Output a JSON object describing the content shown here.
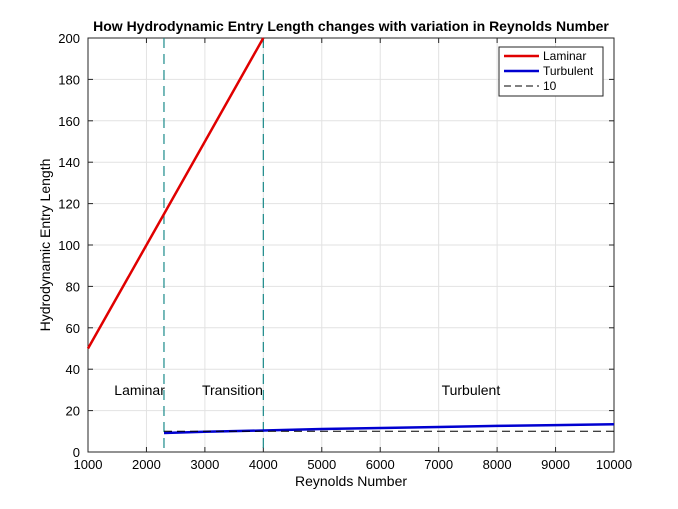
{
  "chart_data": {
    "type": "line",
    "title": "How Hydrodynamic Entry Length changes with variation in Reynolds Number",
    "xlabel": "Reynolds Number",
    "ylabel": "Hydrodynamic Entry Length",
    "xlim": [
      1000,
      10000
    ],
    "ylim": [
      0,
      200
    ],
    "grid": true,
    "legend_position": "top-right",
    "x_ticks": [
      1000,
      2000,
      3000,
      4000,
      5000,
      6000,
      7000,
      8000,
      9000,
      10000
    ],
    "y_ticks": [
      0,
      20,
      40,
      60,
      80,
      100,
      120,
      140,
      160,
      180,
      200
    ],
    "series": [
      {
        "name": "Laminar",
        "color": "#e00000",
        "style": "solid",
        "x": [
          1000,
          2300,
          4000
        ],
        "y": [
          50,
          115,
          200
        ]
      },
      {
        "name": "Turbulent",
        "color": "#0000d0",
        "style": "solid",
        "x": [
          2300,
          3000,
          4000,
          5000,
          6000,
          7000,
          8000,
          9000,
          10000
        ],
        "y": [
          9.2,
          9.8,
          10.4,
          11.1,
          11.6,
          12.1,
          12.6,
          13.0,
          13.4
        ]
      },
      {
        "name": "10",
        "color": "#000000",
        "style": "dashed",
        "x": [
          2300,
          10000
        ],
        "y": [
          10,
          10
        ]
      }
    ],
    "vertical_lines": [
      {
        "x": 2300,
        "color": "#1a8a8a",
        "style": "dashed"
      },
      {
        "x": 4000,
        "color": "#1a8a8a",
        "style": "dashed"
      }
    ],
    "annotations": [
      {
        "text": "Laminar",
        "x": 1450,
        "y": 30
      },
      {
        "text": "Transition",
        "x": 2950,
        "y": 30
      },
      {
        "text": "Turbulent",
        "x": 7050,
        "y": 30
      }
    ]
  }
}
